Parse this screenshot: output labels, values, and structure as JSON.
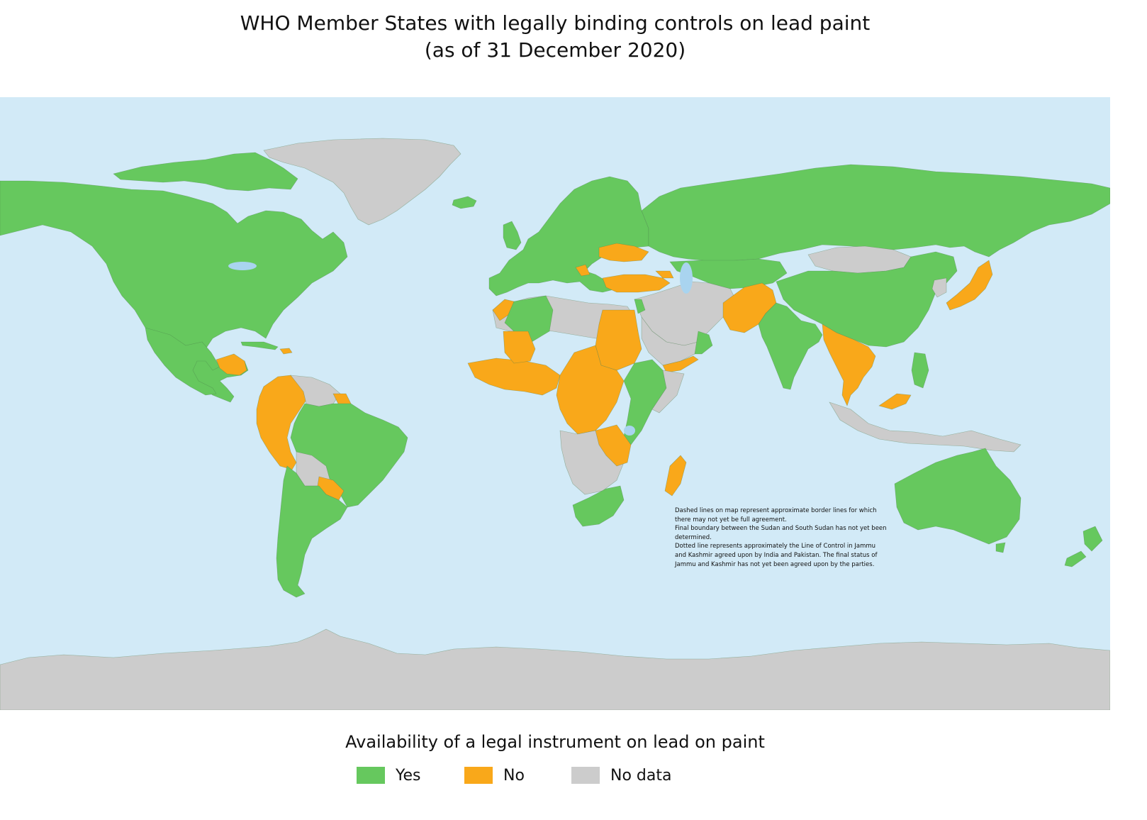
{
  "title": {
    "line1": "WHO Member States with legally binding controls on lead paint",
    "line2": "(as of 31 December 2020)"
  },
  "notes": [
    "Dashed lines on map represent approximate border lines for which",
    "there may not yet be full agreement.",
    "Final boundary between the Sudan and South Sudan has not yet been",
    "determined.",
    "Dotted line represents approximately the Line of Control in Jammu",
    "and Kashmir agreed upon by India and Pakistan. The final status of",
    "Jammu and Kashmir has not yet been agreed upon by the parties."
  ],
  "legend": {
    "title": "Availability of a legal instrument on lead on paint",
    "items": [
      {
        "key": "yes",
        "label": "Yes",
        "color": "#66c85e"
      },
      {
        "key": "no",
        "label": "No",
        "color": "#f9a81a"
      },
      {
        "key": "nodata",
        "label": "No data",
        "color": "#cccccc"
      }
    ]
  },
  "colors": {
    "ocean": "#d2eaf7",
    "border": "#4a7a4a",
    "yes": "#66c85e",
    "no": "#f9a81a",
    "nodata": "#cccccc",
    "lake": "#a9d4ef"
  }
}
